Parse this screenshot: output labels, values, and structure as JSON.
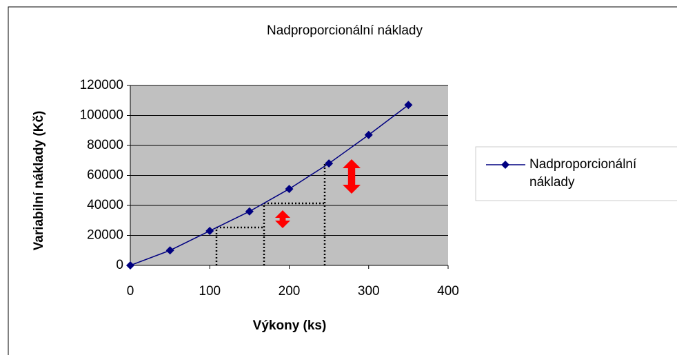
{
  "chart_data": {
    "type": "line",
    "title": "Nadproporcionální náklady",
    "x_label": "Výkony (ks)",
    "y_label": "Variabilní náklady (Kč)",
    "x": [
      0,
      50,
      100,
      150,
      200,
      250,
      300,
      350
    ],
    "series": [
      {
        "name": "Nadproporcionální náklady",
        "color": "#000080",
        "values": [
          0,
          10000,
          23000,
          36000,
          51000,
          68000,
          87000,
          107000
        ]
      }
    ],
    "xlim": [
      0,
      400
    ],
    "xticks": [
      0,
      100,
      200,
      300,
      400
    ],
    "ylim": [
      0,
      120000
    ],
    "yticks": [
      0,
      20000,
      40000,
      60000,
      80000,
      100000,
      120000
    ],
    "grid": true,
    "legend": "right",
    "plot_background": "#c0c0c0"
  }
}
